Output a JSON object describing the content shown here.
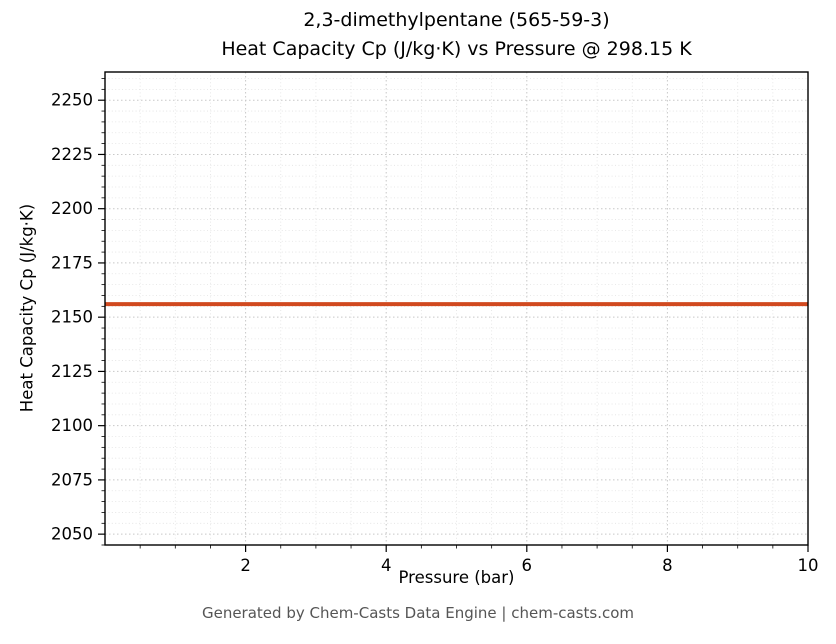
{
  "title": {
    "line1": "2,3-dimethylpentane (565-59-3)",
    "line2": "Heat Capacity Cp (J/kg·K) vs Pressure @ 298.15 K"
  },
  "footer": {
    "text": "Generated by Chem-Casts Data Engine | chem-casts.com"
  },
  "chart_data": {
    "type": "line",
    "title": "2,3-dimethylpentane (565-59-3) — Heat Capacity Cp (J/kg·K) vs Pressure @ 298.15 K",
    "xlabel": "Pressure (bar)",
    "ylabel": "Heat Capacity Cp (J/kg·K)",
    "xlim": [
      0,
      10
    ],
    "ylim": [
      2045,
      2263
    ],
    "xticks": [
      2,
      4,
      6,
      8,
      10
    ],
    "yticks": [
      2050,
      2075,
      2100,
      2125,
      2150,
      2175,
      2200,
      2225,
      2250
    ],
    "x_minor_step": 0.5,
    "y_minor_step": 5,
    "grid": "both-major-and-minor, dotted",
    "legend_position": "none",
    "series": [
      {
        "name": "Heat Capacity Cp",
        "color": "#d1491f",
        "x": [
          0,
          10
        ],
        "y": [
          2156,
          2156
        ]
      }
    ]
  },
  "colors": {
    "line": "#d1491f",
    "grid_major": "#c8c8c8",
    "grid_minor": "#e2e2e2",
    "axis": "#000000",
    "title_text": "#000000",
    "footer_text": "#555555"
  }
}
